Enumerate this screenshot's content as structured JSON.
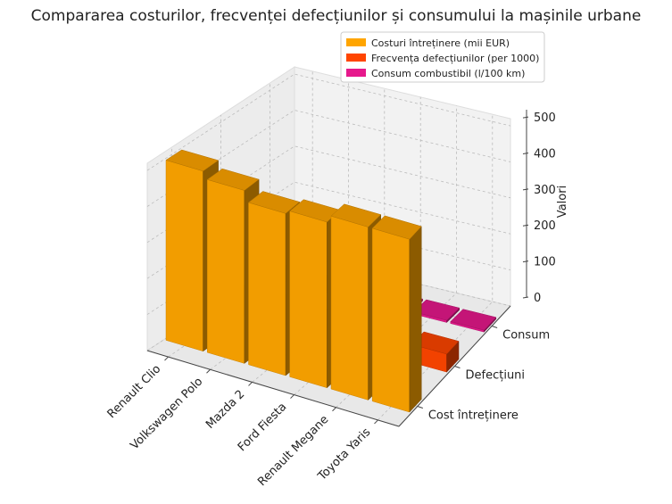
{
  "chart_data": {
    "type": "bar",
    "title": "Compararea costurilor, frecvenței defecțiunilor și consumului la mașinile urbane",
    "categories": [
      "Renault Clio",
      "Volkswagen Polo",
      "Mazda 2",
      "Ford Fiesta",
      "Renault Megane",
      "Toyota Yaris"
    ],
    "depth_categories": [
      "Cost întreținere",
      "Defecțiuni",
      "Consum"
    ],
    "zlabel": "Valori",
    "zlim": [
      0,
      520
    ],
    "zticks": [
      0,
      100,
      200,
      300,
      400,
      500
    ],
    "grid": true,
    "legend_position": "top-right",
    "series": [
      {
        "name": "Costuri întreținere (mii EUR)",
        "color": "#ffa500",
        "values": [
          500,
          480,
          450,
          460,
          480,
          480
        ]
      },
      {
        "name": "Frecvența defecțiunilor (per 1000)",
        "color": "#ff4500",
        "values": [
          45,
          50,
          40,
          35,
          30,
          50
        ]
      },
      {
        "name": "Consum combustibil (l/100 km)",
        "color": "#e6198c",
        "values": [
          5.6,
          5.8,
          5.2,
          5.5,
          6.0,
          5.1
        ]
      }
    ]
  }
}
